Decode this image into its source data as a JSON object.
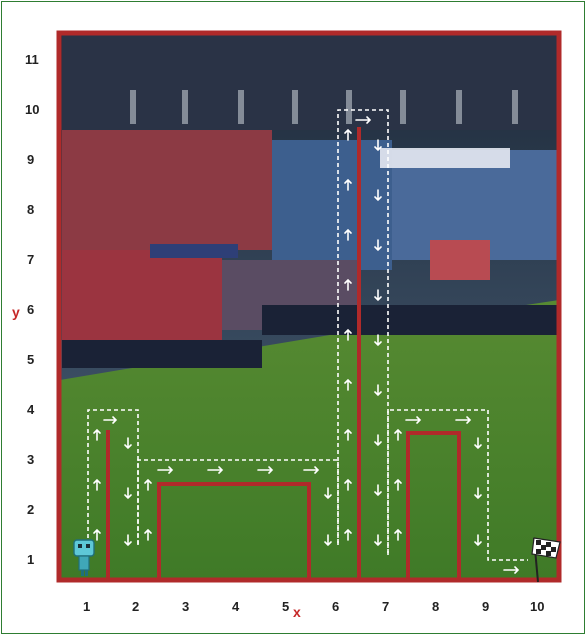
{
  "puzzle": {
    "x_axis": {
      "ticks": [
        "1",
        "2",
        "3",
        "4",
        "5",
        "6",
        "7",
        "8",
        "9",
        "10"
      ],
      "letter": "x"
    },
    "y_axis": {
      "ticks": [
        "1",
        "2",
        "3",
        "4",
        "5",
        "6",
        "7",
        "8",
        "9",
        "10",
        "11"
      ],
      "letter": "y"
    },
    "colors": {
      "wall": "#b02a2a",
      "frame": "#2e7d32",
      "path": "#ffffff",
      "grass": "#4f8a2f"
    },
    "robot": {
      "icon": "robot-icon",
      "cell": [
        1,
        1
      ]
    },
    "goal": {
      "icon": "checkered-flag-icon",
      "cell": [
        10,
        1
      ]
    }
  }
}
